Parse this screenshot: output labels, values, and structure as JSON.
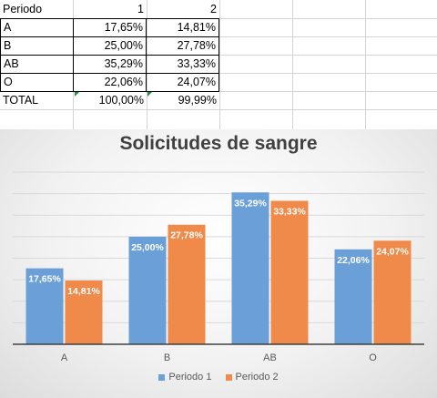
{
  "sheet": {
    "header": {
      "label": "Periodo",
      "col1": "1",
      "col2": "2"
    },
    "rows": [
      {
        "label": "A",
        "v1": "17,65%",
        "v2": "14,81%"
      },
      {
        "label": "B",
        "v1": "25,00%",
        "v2": "27,78%"
      },
      {
        "label": "AB",
        "v1": "35,29%",
        "v2": "33,33%"
      },
      {
        "label": "O",
        "v1": "22,06%",
        "v2": "24,07%"
      }
    ],
    "total": {
      "label": "TOTAL",
      "v1": "100,00%",
      "v2": "99,99%"
    }
  },
  "chart_data": {
    "type": "bar",
    "title": "Solicitudes de sangre",
    "categories": [
      "A",
      "B",
      "AB",
      "O"
    ],
    "series": [
      {
        "name": "Periodo 1",
        "values": [
          17.65,
          25.0,
          35.29,
          22.06
        ],
        "labels": [
          "17,65%",
          "25,00%",
          "35,29%",
          "22,06%"
        ],
        "color": "#6a9fd8"
      },
      {
        "name": "Periodo 2",
        "values": [
          14.81,
          27.78,
          33.33,
          24.07
        ],
        "labels": [
          "14,81%",
          "27,78%",
          "33,33%",
          "24,07%"
        ],
        "color": "#ef8a4a"
      }
    ],
    "ylim": [
      0,
      40
    ],
    "grid": true,
    "legend": "bottom"
  }
}
